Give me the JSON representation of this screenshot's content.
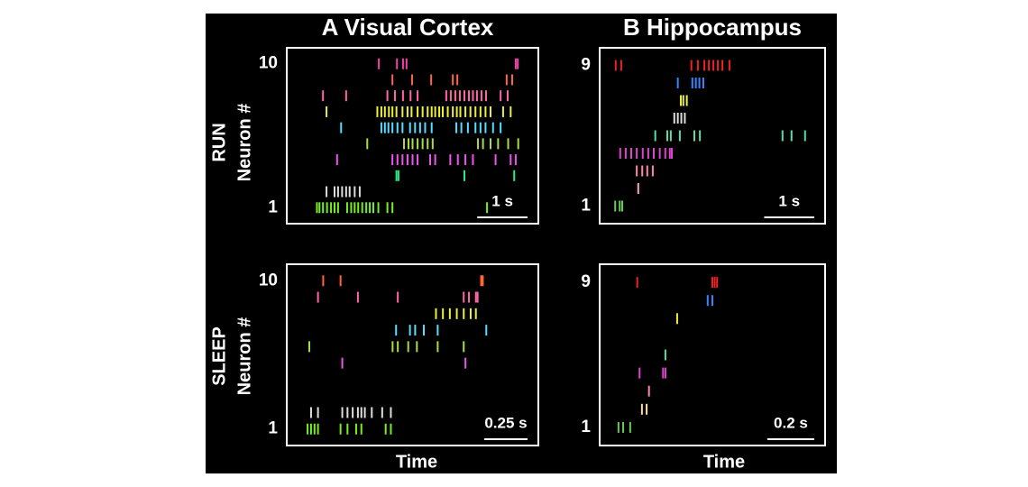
{
  "column_titles": [
    "A Visual Cortex",
    "B Hippocampus"
  ],
  "row_titles": [
    "RUN",
    "SLEEP"
  ],
  "y_label": "Neuron #",
  "x_label": "Time",
  "chart_data": [
    {
      "type": "raster",
      "xlim": [
        0,
        5
      ],
      "ylim": [
        0,
        11
      ],
      "yticks": [
        1,
        10
      ],
      "scalebar": {
        "value": 1,
        "label": "1 s"
      },
      "series": [
        {
          "color": "#77ee22",
          "values": [
            0.6,
            0.65,
            0.72,
            0.8,
            0.88,
            0.95,
            1.02,
            1.2,
            1.28,
            1.35,
            1.42,
            1.5,
            1.58,
            1.65,
            1.72,
            1.82,
            2.0,
            2.1,
            3.98
          ]
        },
        {
          "color": "#dddddd",
          "values": [
            0.79,
            0.95,
            1.02,
            1.1,
            1.18,
            1.25,
            1.35,
            1.45
          ]
        },
        {
          "color": "#22ee88",
          "values": [
            2.18,
            2.22,
            3.53,
            4.52
          ]
        },
        {
          "color": "#ee55ee",
          "values": [
            1.0,
            2.1,
            2.2,
            2.3,
            2.4,
            2.5,
            2.6,
            2.85,
            2.95,
            3.25,
            3.4,
            3.55,
            3.7,
            4.15,
            4.45,
            4.55
          ]
        },
        {
          "color": "#aadd44",
          "values": [
            1.6,
            2.33,
            2.42,
            2.5,
            2.6,
            2.7,
            2.8,
            2.9,
            3.8,
            3.9,
            4.05,
            4.2,
            4.4,
            4.6
          ]
        },
        {
          "color": "#55ddff",
          "values": [
            1.08,
            1.88,
            1.95,
            2.02,
            2.1,
            2.2,
            2.3,
            2.45,
            2.55,
            2.65,
            2.75,
            2.88,
            3.37,
            3.47,
            3.6,
            3.75,
            3.85,
            3.95,
            4.1,
            4.25
          ]
        },
        {
          "color": "#eeee33",
          "values": [
            0.79,
            1.8,
            1.88,
            1.95,
            2.03,
            2.1,
            2.18,
            2.3,
            2.4,
            2.48,
            2.6,
            2.7,
            2.8,
            2.88,
            2.95,
            3.03,
            3.1,
            3.2,
            3.3,
            3.38,
            3.45,
            3.55,
            3.65,
            3.75,
            3.85,
            3.95,
            4.05,
            4.3,
            4.45
          ]
        },
        {
          "color": "#ff66aa",
          "values": [
            0.72,
            1.18,
            2.0,
            2.15,
            2.31,
            2.46,
            2.6,
            3.17,
            3.26,
            3.35,
            3.44,
            3.53,
            3.62,
            3.7,
            3.78,
            3.87,
            3.96,
            4.25,
            4.39
          ]
        },
        {
          "color": "#ff6644",
          "values": [
            2.1,
            2.49,
            2.87,
            3.3,
            3.39,
            4.37,
            4.48
          ]
        },
        {
          "color": "#ee44aa",
          "values": [
            1.83,
            2.19,
            2.31,
            2.38,
            4.55,
            4.59
          ]
        }
      ]
    },
    {
      "type": "raster",
      "xlim": [
        0,
        4.5
      ],
      "ylim": [
        0,
        10
      ],
      "yticks": [
        1,
        9
      ],
      "scalebar": {
        "value": 1,
        "label": "1 s"
      },
      "series": [
        {
          "color": "#66cc55",
          "values": [
            0.31,
            0.4,
            0.45
          ]
        },
        {
          "color": "#ffaabb",
          "values": [
            0.77
          ]
        },
        {
          "color": "#ff88aa",
          "values": [
            0.74,
            0.85,
            0.95,
            1.06
          ]
        },
        {
          "color": "#dd44cc",
          "values": [
            0.41,
            0.52,
            0.63,
            0.74,
            0.86,
            0.97,
            1.08,
            1.2,
            1.31,
            1.4,
            1.44
          ]
        },
        {
          "color": "#55ddaa",
          "values": [
            1.11,
            1.35,
            1.42,
            1.6,
            1.89,
            2.0,
            3.65,
            3.83,
            4.1
          ]
        },
        {
          "color": "#dddddd",
          "values": [
            1.49,
            1.56,
            1.63,
            1.7
          ]
        },
        {
          "color": "#eeee33",
          "values": [
            1.62,
            1.67,
            1.74
          ]
        },
        {
          "color": "#3388ff",
          "values": [
            1.56,
            1.85,
            1.92,
            1.99,
            2.07
          ]
        },
        {
          "color": "#ee2222",
          "values": [
            0.32,
            0.43,
            1.83,
            1.96,
            2.09,
            2.18,
            2.27,
            2.36,
            2.45,
            2.59
          ]
        }
      ]
    },
    {
      "type": "raster",
      "xlim": [
        0,
        1.45
      ],
      "ylim": [
        0,
        11
      ],
      "yticks": [
        1,
        10
      ],
      "scalebar": {
        "value": 0.25,
        "label": "0.25 s"
      },
      "series": [
        {
          "color": "#77ee22",
          "values": [
            0.12,
            0.14,
            0.16,
            0.18,
            0.31,
            0.35,
            0.4,
            0.43,
            0.57,
            0.6
          ]
        },
        {
          "color": "#dddddd",
          "values": [
            0.14,
            0.18,
            0.32,
            0.35,
            0.38,
            0.41,
            0.43,
            0.45,
            0.49,
            0.55,
            0.6
          ]
        },
        {
          "color": "#22ee88",
          "values": []
        },
        {
          "color": "#ee55ee",
          "values": []
        },
        {
          "color": "#ee55ee",
          "values": [
            0.32,
            1.03
          ]
        },
        {
          "color": "#aadd44",
          "values": [
            0.13,
            0.61,
            0.64,
            0.7,
            0.75,
            0.87,
            1.02
          ]
        },
        {
          "color": "#55ddff",
          "values": [
            0.63,
            0.71,
            0.74,
            0.79,
            0.87,
            1.15
          ]
        },
        {
          "color": "#eeee33",
          "values": [
            0.86,
            0.9,
            0.94,
            0.98,
            1.02,
            1.06,
            1.09
          ]
        },
        {
          "color": "#ff66aa",
          "values": [
            0.18,
            0.41,
            0.64,
            1.02,
            1.05,
            1.09,
            1.1
          ]
        },
        {
          "color": "#ff6633",
          "values": [
            0.21,
            0.31,
            1.12,
            1.13
          ]
        }
      ]
    },
    {
      "type": "raster",
      "xlim": [
        0,
        0.96
      ],
      "ylim": [
        0,
        10
      ],
      "yticks": [
        1,
        9
      ],
      "scalebar": {
        "value": 0.2,
        "label": "0.2 s"
      },
      "series": [
        {
          "color": "#66cc55",
          "values": [
            0.08,
            0.1,
            0.13
          ]
        },
        {
          "color": "#ffddaa",
          "values": [
            0.18,
            0.2
          ]
        },
        {
          "color": "#ff88aa",
          "values": [
            0.21
          ]
        },
        {
          "color": "#dd44cc",
          "values": [
            0.17,
            0.27,
            0.28
          ]
        },
        {
          "color": "#55ddaa",
          "values": [
            0.28
          ]
        },
        {
          "color": "#dddddd",
          "values": []
        },
        {
          "color": "#eeee33",
          "values": [
            0.33
          ]
        },
        {
          "color": "#3388ff",
          "values": [
            0.46,
            0.48
          ]
        },
        {
          "color": "#ee2222",
          "values": [
            0.16,
            0.48,
            0.49,
            0.5
          ]
        }
      ]
    }
  ]
}
